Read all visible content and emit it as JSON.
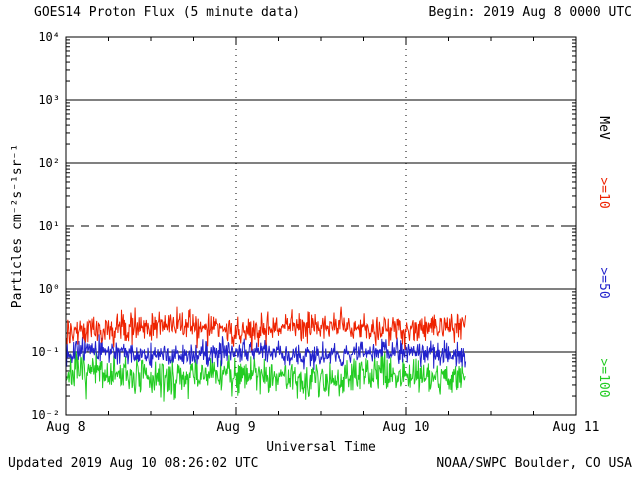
{
  "header": {
    "title": "GOES14 Proton Flux (5 minute data)",
    "begin": "Begin: 2019 Aug 8 0000 UTC"
  },
  "footer": {
    "updated": "Updated 2019 Aug 10 08:26:02 UTC",
    "credit": "NOAA/SWPC Boulder, CO USA"
  },
  "chart_data": {
    "type": "line",
    "title": "GOES14 Proton Flux (5 minute data)",
    "xlabel": "Universal Time",
    "ylabel": "Particles cm⁻²s⁻¹sr⁻¹",
    "x_start": "2019 Aug 8 0000 UTC",
    "x_span_days": 3,
    "x_ticks": [
      {
        "label": "Aug 8",
        "day": 0
      },
      {
        "label": "Aug 9",
        "day": 1
      },
      {
        "label": "Aug 10",
        "day": 2
      },
      {
        "label": "Aug 11",
        "day": 3
      }
    ],
    "y_scale": "log10",
    "ylim": [
      0.01,
      10000
    ],
    "y_ticks": [
      {
        "label": "10⁴",
        "value": 10000
      },
      {
        "label": "10³",
        "value": 1000
      },
      {
        "label": "10²",
        "value": 100
      },
      {
        "label": "10¹",
        "value": 10
      },
      {
        "label": "10⁰",
        "value": 1
      },
      {
        "label": "10⁻¹",
        "value": 0.1
      },
      {
        "label": "10⁻²",
        "value": 0.01
      }
    ],
    "solid_hlines": [
      1000,
      100,
      1,
      0.1
    ],
    "dashed_hlines": [
      10
    ],
    "dotted_vlines_days": [
      1,
      2
    ],
    "minor_xtick_hours": 6,
    "sample_minutes": 5,
    "data_end_day": 2.351,
    "legend_position": "right",
    "right_labels": [
      {
        "text": "MeV",
        "color": "#000000"
      },
      {
        "text": ">=10",
        "color": "#ee2200"
      },
      {
        "text": ">=50",
        "color": "#2222cc"
      },
      {
        "text": ">=100",
        "color": "#22cc22"
      }
    ],
    "series": [
      {
        "name": ">=100 MeV",
        "right_label": ">=100",
        "color": "#22cc22",
        "mean_flux": 0.042,
        "approx_range": [
          0.02,
          0.1
        ],
        "mean_log10": -1.38,
        "sigma_log10": 0.15,
        "seed": 7
      },
      {
        "name": ">=50 MeV",
        "right_label": ">=50",
        "color": "#2222cc",
        "mean_flux": 0.095,
        "approx_range": [
          0.06,
          0.15
        ],
        "mean_log10": -1.02,
        "sigma_log10": 0.09,
        "seed": 13
      },
      {
        "name": ">=10 MeV",
        "right_label": ">=10",
        "color": "#ee2200",
        "mean_flux": 0.24,
        "approx_range": [
          0.11,
          0.5
        ],
        "mean_log10": -0.62,
        "sigma_log10": 0.12,
        "seed": 29
      }
    ]
  }
}
